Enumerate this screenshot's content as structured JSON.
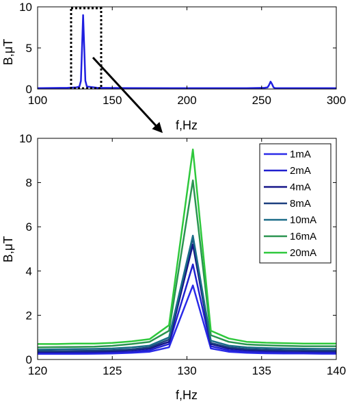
{
  "chart_data": [
    {
      "id": "overview",
      "type": "line",
      "title": "",
      "xlabel": "f,Hz",
      "ylabel": "B,μT",
      "xlim": [
        100,
        300
      ],
      "ylim": [
        0,
        10
      ],
      "xticks": [
        "100",
        "150",
        "200",
        "250",
        "300"
      ],
      "yticks": [
        "0",
        "5",
        "10"
      ],
      "grid": false,
      "series": [
        {
          "color": "#1f1fe0",
          "x": [
            100,
            120,
            126,
            128,
            129,
            130.5,
            132,
            133,
            140,
            160,
            200,
            240,
            252,
            254,
            255,
            256,
            257,
            258,
            259,
            262,
            280,
            300
          ],
          "y": [
            0.1,
            0.15,
            0.2,
            0.3,
            1.0,
            9.0,
            1.0,
            0.3,
            0.15,
            0.12,
            0.1,
            0.1,
            0.15,
            0.2,
            0.5,
            0.9,
            0.6,
            0.2,
            0.12,
            0.1,
            0.1,
            0.1
          ]
        }
      ],
      "annotations": [
        {
          "type": "dotted-box",
          "x": [
            120,
            140
          ],
          "y": [
            0,
            10
          ]
        },
        {
          "type": "arrow",
          "from_data": [
            140,
            4
          ],
          "to": "zoom-panel"
        }
      ]
    },
    {
      "id": "zoom",
      "type": "line",
      "title": "",
      "xlabel": "f,Hz",
      "ylabel": "B,μT",
      "xlim": [
        120,
        140
      ],
      "ylim": [
        0,
        10
      ],
      "xticks": [
        "120",
        "125",
        "130",
        "135",
        "140"
      ],
      "yticks": [
        "0",
        "2",
        "4",
        "6",
        "8",
        "10"
      ],
      "grid": false,
      "legend_position": "top-right",
      "x": [
        120,
        121.3,
        122.5,
        123.8,
        125,
        126.3,
        127.5,
        128.8,
        130.4,
        131.6,
        132.8,
        134,
        135.3,
        136.5,
        137.8,
        139,
        140
      ],
      "series": [
        {
          "name": "1mA",
          "color": "#2a2ae8",
          "y": [
            0.25,
            0.25,
            0.25,
            0.26,
            0.27,
            0.3,
            0.35,
            0.55,
            3.35,
            0.5,
            0.35,
            0.3,
            0.28,
            0.27,
            0.27,
            0.26,
            0.26
          ]
        },
        {
          "name": "2mA",
          "color": "#2020cf",
          "y": [
            0.3,
            0.3,
            0.3,
            0.31,
            0.32,
            0.35,
            0.42,
            0.7,
            4.3,
            0.6,
            0.42,
            0.36,
            0.33,
            0.32,
            0.31,
            0.31,
            0.3
          ]
        },
        {
          "name": "4mA",
          "color": "#121288",
          "y": [
            0.35,
            0.35,
            0.36,
            0.36,
            0.38,
            0.42,
            0.5,
            0.8,
            5.2,
            0.7,
            0.5,
            0.43,
            0.4,
            0.39,
            0.38,
            0.37,
            0.37
          ]
        },
        {
          "name": "8mA",
          "color": "#1b3f7e",
          "y": [
            0.38,
            0.38,
            0.39,
            0.4,
            0.42,
            0.46,
            0.55,
            0.9,
            5.5,
            0.75,
            0.55,
            0.47,
            0.44,
            0.42,
            0.41,
            0.4,
            0.4
          ]
        },
        {
          "name": "10mA",
          "color": "#1a6b88",
          "y": [
            0.45,
            0.46,
            0.47,
            0.48,
            0.5,
            0.55,
            0.63,
            1.0,
            5.6,
            0.85,
            0.63,
            0.55,
            0.52,
            0.5,
            0.49,
            0.48,
            0.48
          ]
        },
        {
          "name": "16mA",
          "color": "#2a9450",
          "y": [
            0.55,
            0.56,
            0.57,
            0.58,
            0.62,
            0.7,
            0.8,
            1.3,
            8.1,
            1.1,
            0.8,
            0.68,
            0.64,
            0.62,
            0.6,
            0.6,
            0.6
          ]
        },
        {
          "name": "20mA",
          "color": "#2ec83c",
          "y": [
            0.7,
            0.7,
            0.72,
            0.72,
            0.75,
            0.82,
            0.92,
            1.55,
            9.5,
            1.3,
            0.95,
            0.8,
            0.76,
            0.74,
            0.72,
            0.72,
            0.72
          ]
        }
      ]
    }
  ]
}
